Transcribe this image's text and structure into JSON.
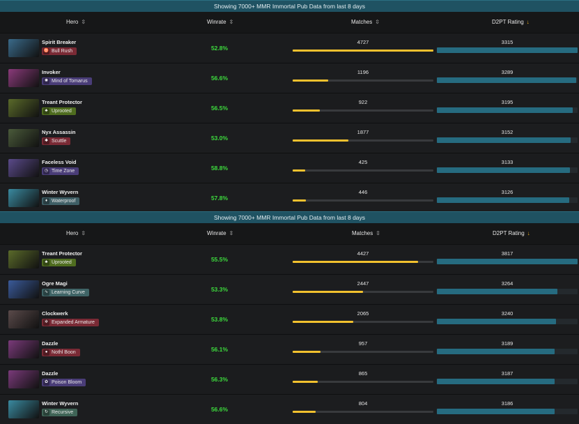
{
  "colors": {
    "banner": "#1f5262",
    "winrate": "#3ddc3d",
    "matches_bar": "#f2c12e",
    "rating_bar": "#266b80"
  },
  "panels": [
    {
      "banner": "Showing 7000+ MMR Immortal Pub Data from last 8 days",
      "headers": {
        "hero": "Hero",
        "winrate": "Winrate",
        "matches": "Matches",
        "rating": "D2PT Rating"
      },
      "rows": [
        {
          "hero": "Spirit Breaker",
          "facet": "Bull Rush",
          "facet_color": "#7a2a35",
          "facet_icon": "bull-icon",
          "portrait": "#3a6a8a",
          "winrate": "52.8%",
          "matches": "4727",
          "matches_frac": 1.0,
          "rating": "3315",
          "rating_frac": 1.0
        },
        {
          "hero": "Invoker",
          "facet": "Mind of Tomarus",
          "facet_color": "#4a3d78",
          "facet_icon": "mind-icon",
          "portrait": "#8a3a7a",
          "winrate": "56.6%",
          "matches": "1196",
          "matches_frac": 0.253,
          "rating": "3289",
          "rating_frac": 0.992
        },
        {
          "hero": "Treant Protector",
          "facet": "Uprooted",
          "facet_color": "#4f6d1f",
          "facet_icon": "tree-icon",
          "portrait": "#5a6a2a",
          "winrate": "56.5%",
          "matches": "922",
          "matches_frac": 0.195,
          "rating": "3195",
          "rating_frac": 0.964
        },
        {
          "hero": "Nyx Assassin",
          "facet": "Scuttle",
          "facet_color": "#7a2a35",
          "facet_icon": "scuttle-icon",
          "portrait": "#4a5a3a",
          "winrate": "53.0%",
          "matches": "1877",
          "matches_frac": 0.397,
          "rating": "3152",
          "rating_frac": 0.951
        },
        {
          "hero": "Faceless Void",
          "facet": "Time Zone",
          "facet_color": "#4a3d78",
          "facet_icon": "clock-icon",
          "portrait": "#5a4a8a",
          "winrate": "58.8%",
          "matches": "425",
          "matches_frac": 0.09,
          "rating": "3133",
          "rating_frac": 0.945
        },
        {
          "hero": "Winter Wyvern",
          "facet": "Waterproof",
          "facet_color": "#3f5f66",
          "facet_icon": "drop-icon",
          "portrait": "#3a8aa0",
          "winrate": "57.8%",
          "matches": "446",
          "matches_frac": 0.094,
          "rating": "3126",
          "rating_frac": 0.943
        }
      ]
    },
    {
      "banner": "Showing 7000+ MMR Immortal Pub Data from last 8 days",
      "headers": {
        "hero": "Hero",
        "winrate": "Winrate",
        "matches": "Matches",
        "rating": "D2PT Rating"
      },
      "rows": [
        {
          "hero": "Treant Protector",
          "facet": "Uprooted",
          "facet_color": "#4f6d1f",
          "facet_icon": "tree-icon",
          "portrait": "#5a6a2a",
          "winrate": "55.5%",
          "matches": "4427",
          "matches_frac": 0.89,
          "rating": "3817",
          "rating_frac": 1.0
        },
        {
          "hero": "Ogre Magi",
          "facet": "Learning Curve",
          "facet_color": "#3f6466",
          "facet_icon": "curve-icon",
          "portrait": "#3a5a9a",
          "winrate": "53.3%",
          "matches": "2447",
          "matches_frac": 0.5,
          "rating": "3264",
          "rating_frac": 0.855
        },
        {
          "hero": "Clockwerk",
          "facet": "Expanded Armature",
          "facet_color": "#7a2a35",
          "facet_icon": "gear-icon",
          "portrait": "#5a4a4a",
          "winrate": "53.8%",
          "matches": "2065",
          "matches_frac": 0.43,
          "rating": "3240",
          "rating_frac": 0.849
        },
        {
          "hero": "Dazzle",
          "facet": "Nothl Boon",
          "facet_color": "#7a2a35",
          "facet_icon": "boon-icon",
          "portrait": "#7a3a7a",
          "winrate": "56.1%",
          "matches": "957",
          "matches_frac": 0.2,
          "rating": "3189",
          "rating_frac": 0.836
        },
        {
          "hero": "Dazzle",
          "facet": "Poison Bloom",
          "facet_color": "#4a3d78",
          "facet_icon": "bloom-icon",
          "portrait": "#7a3a7a",
          "winrate": "56.3%",
          "matches": "865",
          "matches_frac": 0.18,
          "rating": "3187",
          "rating_frac": 0.835
        },
        {
          "hero": "Winter Wyvern",
          "facet": "Recursive",
          "facet_color": "#3f6456",
          "facet_icon": "recursive-icon",
          "portrait": "#3a8aa0",
          "winrate": "56.6%",
          "matches": "804",
          "matches_frac": 0.165,
          "rating": "3186",
          "rating_frac": 0.835
        }
      ]
    }
  ]
}
